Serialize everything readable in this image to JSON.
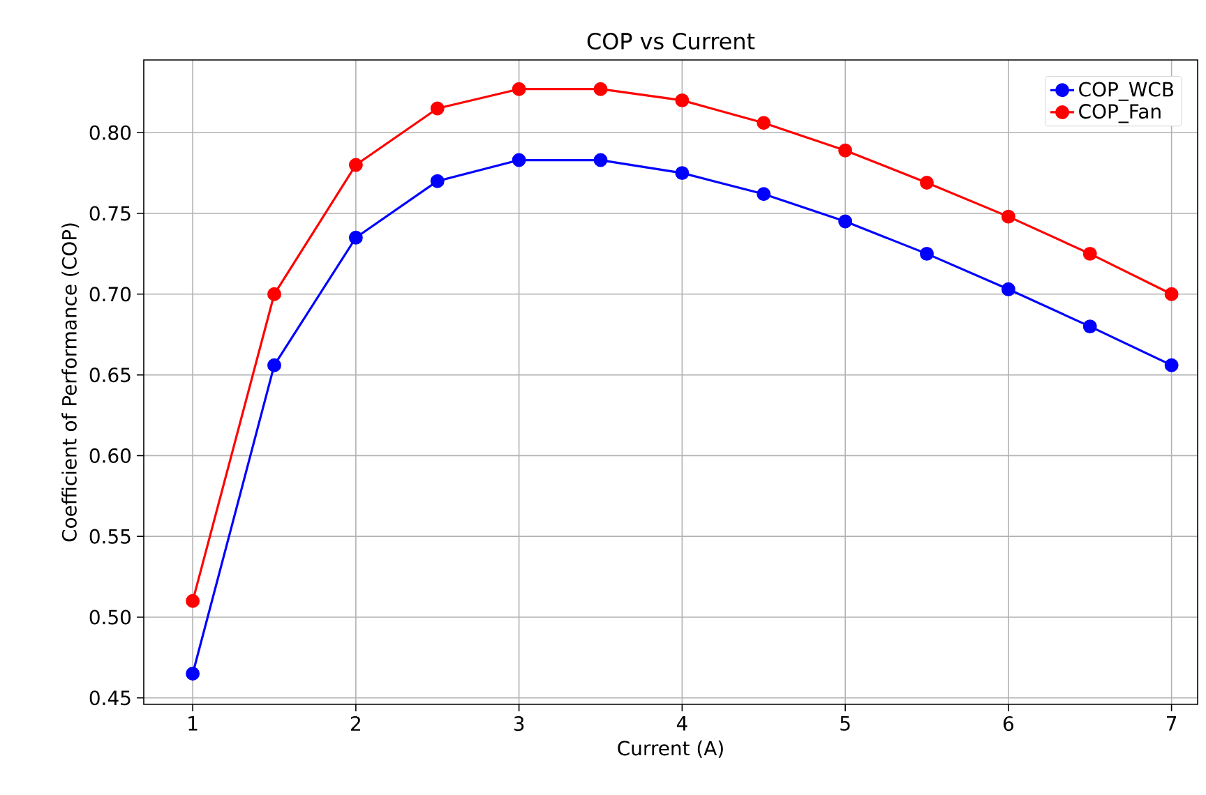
{
  "chart_data": {
    "type": "line",
    "title": "COP vs Current",
    "xlabel": "Current (A)",
    "ylabel": "Coefficient of Performance (COP)",
    "x": [
      1,
      1.5,
      2,
      2.5,
      3,
      3.5,
      4,
      4.5,
      5,
      5.5,
      6,
      6.5,
      7
    ],
    "series": [
      {
        "name": "COP_WCB",
        "color": "#0000ff",
        "values": [
          0.465,
          0.656,
          0.735,
          0.77,
          0.783,
          0.783,
          0.775,
          0.762,
          0.745,
          0.725,
          0.703,
          0.68,
          0.656
        ]
      },
      {
        "name": "COP_Fan",
        "color": "#ff0000",
        "values": [
          0.51,
          0.7,
          0.78,
          0.815,
          0.827,
          0.827,
          0.82,
          0.806,
          0.789,
          0.769,
          0.748,
          0.725,
          0.7
        ]
      }
    ],
    "xlim": [
      0.7,
      7.16
    ],
    "ylim": [
      0.446,
      0.845
    ],
    "xticks": [
      1,
      2,
      3,
      4,
      5,
      6,
      7
    ],
    "yticks": [
      0.45,
      {
        "value": 0.5,
        "label": "0.50"
      },
      0.55,
      {
        "value": 0.6,
        "label": "0.60"
      },
      0.65,
      {
        "value": 0.7,
        "label": "0.70"
      },
      0.75,
      {
        "value": 0.8,
        "label": "0.80"
      }
    ],
    "grid": true,
    "legend": "top right",
    "marker": "circle",
    "line_style": "solid"
  }
}
